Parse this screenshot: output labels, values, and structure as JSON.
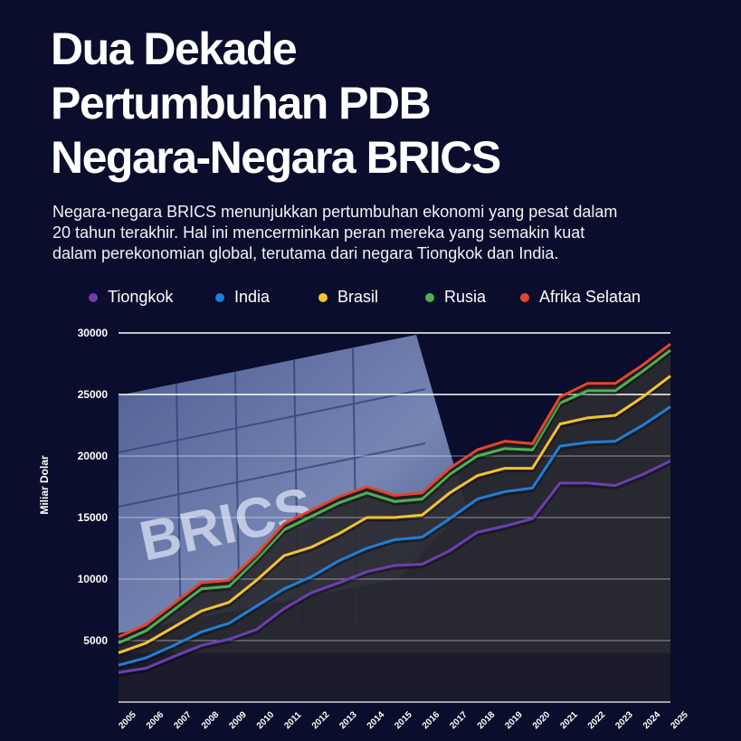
{
  "header": {
    "title_lines": [
      "Dua Dekade",
      "Pertumbuhan PDB",
      "Negara-Negara BRICS"
    ],
    "subtitle_lines": [
      "Negara-negara BRICS menunjukkan pertumbuhan ekonomi yang pesat dalam",
      "20 tahun terakhir. Hal ini mencerminkan peran mereka yang semakin kuat",
      "dalam perekonomian global, terutama dari negara Tiongkok dan India."
    ]
  },
  "chart_data": {
    "type": "line",
    "stacked": true,
    "ylabel": "Miliar Dolar",
    "xlabel": "",
    "ylim": [
      0,
      30000
    ],
    "yticks": [
      "5000",
      "10000",
      "15000",
      "20000",
      "25000",
      "30000"
    ],
    "grid": true,
    "legend_placement": "top",
    "categories": [
      "2005",
      "2006",
      "2007",
      "2008",
      "2009",
      "2010",
      "2011",
      "2012",
      "2013",
      "2014",
      "2015",
      "2016",
      "2017",
      "2018",
      "2019",
      "2020",
      "2021",
      "2022",
      "2023",
      "2024",
      "2025"
    ],
    "series": [
      {
        "name": "Tiongkok",
        "color": "#6b3fb3",
        "values": [
          2400,
          2760,
          3700,
          4600,
          5100,
          5900,
          7600,
          8900,
          9700,
          10600,
          11100,
          11200,
          12300,
          13800,
          14300,
          14900,
          17800,
          17800,
          17600,
          18500,
          19600
        ]
      },
      {
        "name": "India",
        "color": "#1f7fd6",
        "values": [
          600,
          840,
          900,
          1100,
          1300,
          1900,
          1600,
          1300,
          1800,
          1900,
          2100,
          2200,
          2600,
          2700,
          2800,
          2500,
          3000,
          3300,
          3600,
          4000,
          4400
        ]
      },
      {
        "name": "Brasil",
        "color": "#f4c22d",
        "values": [
          1000,
          1200,
          1500,
          1700,
          1700,
          2100,
          2700,
          2400,
          2200,
          2500,
          1800,
          1800,
          2100,
          1900,
          1900,
          1600,
          1800,
          2000,
          2100,
          2300,
          2500
        ]
      },
      {
        "name": "Rusia",
        "color": "#4db154",
        "values": [
          800,
          1000,
          1400,
          1800,
          1300,
          1700,
          2100,
          2500,
          2500,
          2000,
          1300,
          1300,
          1500,
          1600,
          1600,
          1500,
          1700,
          2200,
          2000,
          2100,
          2100
        ]
      },
      {
        "name": "Afrika Selatan",
        "color": "#e4452b",
        "values": [
          500,
          500,
          500,
          500,
          500,
          400,
          500,
          500,
          500,
          500,
          500,
          500,
          500,
          500,
          600,
          500,
          500,
          600,
          600,
          500,
          500
        ]
      }
    ]
  }
}
